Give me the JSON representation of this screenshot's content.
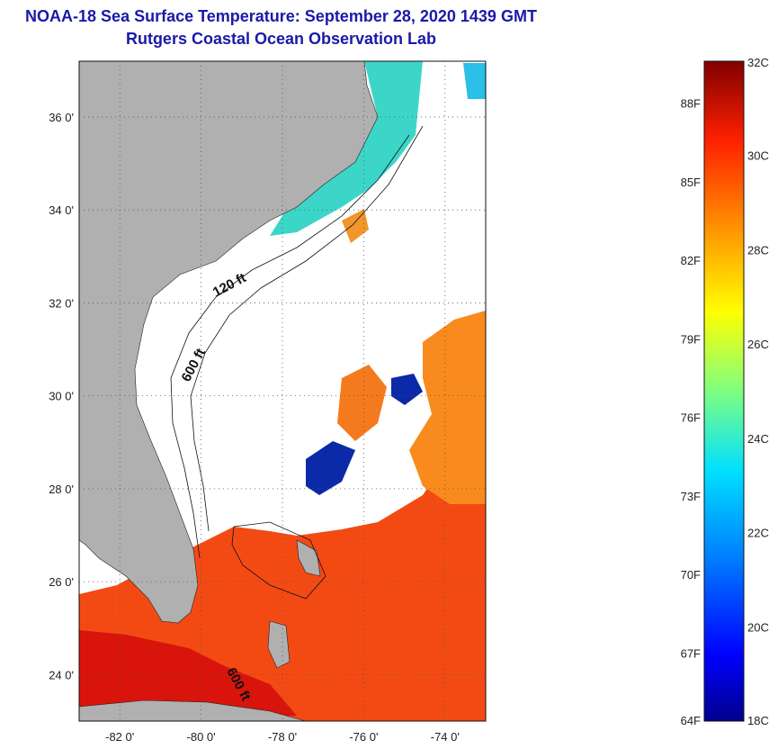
{
  "title": {
    "line1": "NOAA-18 Sea Surface Temperature:  September 28, 2020 1439 GMT",
    "line2": "Rutgers Coastal Ocean Observation Lab"
  },
  "map": {
    "lon_ticks": [
      "-82 0'",
      "-80 0'",
      "-78 0'",
      "-76 0'",
      "-74 0'"
    ],
    "lat_ticks": [
      "36 0'",
      "34 0'",
      "32 0'",
      "30 0'",
      "28 0'",
      "26 0'",
      "24 0'"
    ],
    "lon_values": [
      -82,
      -80,
      -78,
      -76,
      -74
    ],
    "lat_values": [
      36,
      34,
      32,
      30,
      28,
      26,
      24
    ],
    "lon_range": [
      -83,
      -73
    ],
    "lat_range": [
      23,
      37.2
    ],
    "land_color": "#b0b0b0",
    "isobaths": [
      "120 ft",
      "600 ft",
      "600 ft"
    ]
  },
  "colorbar": {
    "min_c": 18,
    "max_c": 32,
    "celsius_labels": [
      "32C",
      "30C",
      "28C",
      "26C",
      "24C",
      "22C",
      "20C",
      "18C"
    ],
    "celsius_values": [
      32,
      30,
      28,
      26,
      24,
      22,
      20,
      18
    ],
    "fahrenheit_labels": [
      "88F",
      "85F",
      "82F",
      "79F",
      "76F",
      "73F",
      "70F",
      "67F",
      "64F"
    ],
    "fahrenheit_values": [
      88,
      85,
      82,
      79,
      76,
      73,
      70,
      67,
      64
    ]
  }
}
